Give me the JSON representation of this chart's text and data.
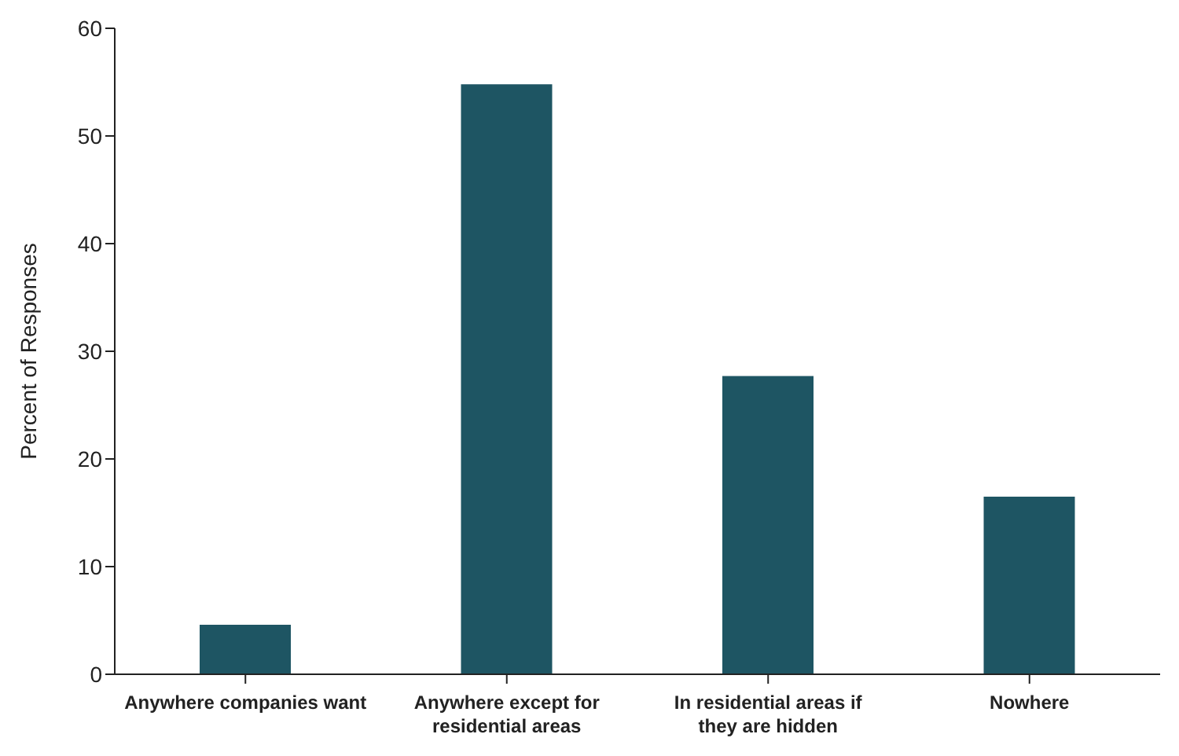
{
  "chart_data": {
    "type": "bar",
    "ylabel": "Percent of Responses",
    "categories": [
      "Anywhere companies want",
      "Anywhere except for residential areas",
      "In residential areas if they are hidden",
      "Nowhere"
    ],
    "values": [
      4.6,
      54.8,
      27.7,
      16.5
    ],
    "color": "#1e5563",
    "ylim": [
      0,
      60
    ],
    "yticks": [
      0,
      10,
      20,
      30,
      40,
      50,
      60
    ],
    "grid": false
  }
}
